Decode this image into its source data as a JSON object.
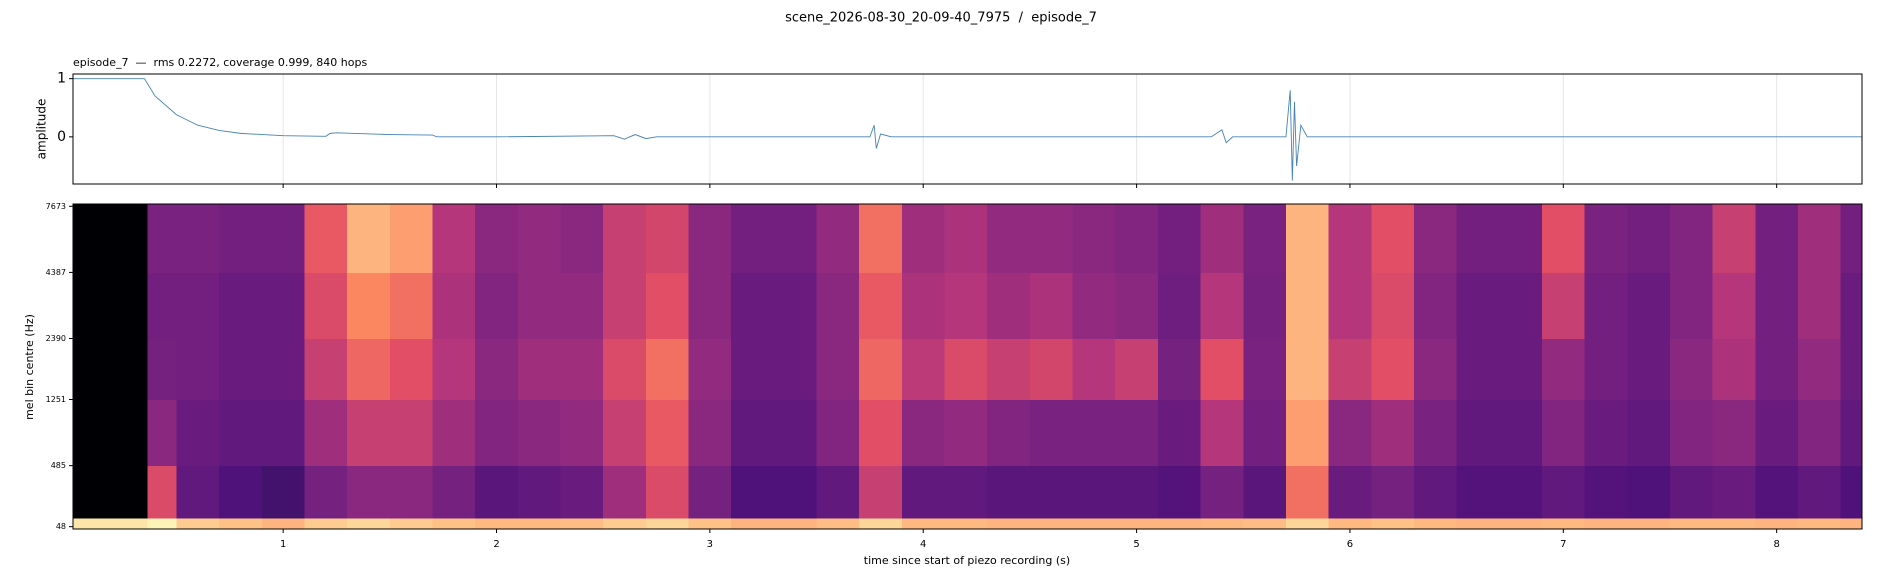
{
  "title": "scene_2026-08-30_20-09-40_7975  /  episode_7",
  "chart_data": [
    {
      "type": "line",
      "title": "episode_7  —  rms 0.2272, coverage 0.999, 840 hops",
      "ylabel": "amplitude",
      "color": "#4682b4",
      "grid": true,
      "xlim": [
        0.015,
        8.4
      ],
      "ylim": [
        -0.81,
        1.08
      ],
      "xticks": [
        1,
        2,
        3,
        4,
        5,
        6,
        7,
        8
      ],
      "yticks": [
        0,
        1
      ],
      "x": [
        0.015,
        0.35,
        0.4,
        0.5,
        0.6,
        0.7,
        0.8,
        1.0,
        1.2,
        1.22,
        1.25,
        1.5,
        1.7,
        1.72,
        2.0,
        2.55,
        2.6,
        2.65,
        2.7,
        2.75,
        3.5,
        3.75,
        3.77,
        3.78,
        3.8,
        3.85,
        4.5,
        5.35,
        5.4,
        5.42,
        5.45,
        5.7,
        5.72,
        5.73,
        5.74,
        5.75,
        5.77,
        5.8,
        6.3,
        7.0,
        8.4
      ],
      "values": [
        1,
        1,
        0.7,
        0.38,
        0.2,
        0.11,
        0.06,
        0.02,
        0.01,
        0.06,
        0.07,
        0.04,
        0.03,
        0,
        0,
        0.02,
        -0.04,
        0.04,
        -0.03,
        0,
        0,
        0,
        0.2,
        -0.2,
        0.05,
        0,
        0,
        0,
        0.12,
        -0.1,
        0,
        0,
        0.8,
        -0.75,
        0.6,
        -0.5,
        0.2,
        0,
        0,
        0,
        0
      ]
    },
    {
      "type": "heatmap",
      "xlabel": "time since start of piezo recording (s)",
      "ylabel": "mel bin centre (Hz)",
      "colormap": "magma",
      "yscale": "mel",
      "xlim": [
        0.015,
        8.4
      ],
      "ylim": [
        35,
        7820
      ],
      "xticks": [
        1,
        2,
        3,
        4,
        5,
        6,
        7,
        8
      ],
      "yticks": [
        48,
        485,
        1251,
        2390,
        4387,
        7673
      ],
      "xbins": [
        0.015,
        0.365,
        0.5,
        0.7,
        0.9,
        1.1,
        1.3,
        1.5,
        1.7,
        1.9,
        2.1,
        2.3,
        2.5,
        2.7,
        2.9,
        3.1,
        3.3,
        3.5,
        3.7,
        3.9,
        4.1,
        4.3,
        4.5,
        4.7,
        4.9,
        5.1,
        5.3,
        5.5,
        5.7,
        5.9,
        6.1,
        6.3,
        6.5,
        6.7,
        6.9,
        7.1,
        7.3,
        7.5,
        7.7,
        7.9,
        8.1,
        8.3,
        8.4
      ],
      "ybins": [
        35,
        100,
        485,
        1251,
        2390,
        4387,
        7820
      ],
      "z": [
        [
          0.95,
          0.98,
          0.9,
          0.88,
          0.85,
          0.9,
          0.92,
          0.9,
          0.88,
          0.86,
          0.86,
          0.87,
          0.9,
          0.92,
          0.88,
          0.85,
          0.85,
          0.87,
          0.92,
          0.86,
          0.86,
          0.85,
          0.85,
          0.85,
          0.85,
          0.85,
          0.86,
          0.87,
          0.92,
          0.86,
          0.88,
          0.86,
          0.85,
          0.85,
          0.86,
          0.85,
          0.85,
          0.86,
          0.86,
          0.85,
          0.86,
          0.85
        ],
        [
          0,
          0.6,
          0.3,
          0.25,
          0.22,
          0.35,
          0.4,
          0.4,
          0.35,
          0.28,
          0.3,
          0.32,
          0.45,
          0.6,
          0.35,
          0.25,
          0.25,
          0.3,
          0.55,
          0.3,
          0.3,
          0.28,
          0.28,
          0.28,
          0.28,
          0.26,
          0.35,
          0.28,
          0.7,
          0.32,
          0.35,
          0.3,
          0.26,
          0.26,
          0.3,
          0.26,
          0.25,
          0.3,
          0.32,
          0.26,
          0.3,
          0.25
        ],
        [
          0,
          0.4,
          0.32,
          0.3,
          0.3,
          0.45,
          0.55,
          0.55,
          0.45,
          0.38,
          0.4,
          0.42,
          0.55,
          0.65,
          0.4,
          0.3,
          0.3,
          0.38,
          0.62,
          0.4,
          0.42,
          0.38,
          0.36,
          0.36,
          0.36,
          0.32,
          0.5,
          0.34,
          0.8,
          0.4,
          0.45,
          0.36,
          0.3,
          0.3,
          0.38,
          0.32,
          0.3,
          0.38,
          0.4,
          0.32,
          0.38,
          0.3
        ],
        [
          0,
          0.35,
          0.34,
          0.32,
          0.32,
          0.55,
          0.68,
          0.62,
          0.5,
          0.4,
          0.45,
          0.45,
          0.6,
          0.7,
          0.42,
          0.32,
          0.32,
          0.4,
          0.68,
          0.52,
          0.6,
          0.55,
          0.58,
          0.5,
          0.55,
          0.35,
          0.62,
          0.36,
          0.85,
          0.55,
          0.62,
          0.4,
          0.32,
          0.32,
          0.42,
          0.34,
          0.32,
          0.4,
          0.48,
          0.34,
          0.42,
          0.32
        ],
        [
          0,
          0.34,
          0.34,
          0.32,
          0.32,
          0.6,
          0.75,
          0.7,
          0.48,
          0.38,
          0.42,
          0.42,
          0.55,
          0.62,
          0.4,
          0.32,
          0.32,
          0.4,
          0.65,
          0.48,
          0.5,
          0.45,
          0.48,
          0.42,
          0.4,
          0.33,
          0.5,
          0.35,
          0.85,
          0.5,
          0.6,
          0.38,
          0.32,
          0.32,
          0.55,
          0.34,
          0.32,
          0.38,
          0.5,
          0.34,
          0.45,
          0.32
        ],
        [
          0,
          0.36,
          0.36,
          0.34,
          0.34,
          0.65,
          0.85,
          0.8,
          0.5,
          0.4,
          0.42,
          0.4,
          0.55,
          0.58,
          0.4,
          0.34,
          0.34,
          0.42,
          0.7,
          0.45,
          0.48,
          0.42,
          0.42,
          0.4,
          0.38,
          0.34,
          0.45,
          0.36,
          0.85,
          0.5,
          0.62,
          0.4,
          0.34,
          0.34,
          0.62,
          0.36,
          0.34,
          0.38,
          0.55,
          0.34,
          0.45,
          0.34
        ]
      ]
    }
  ]
}
